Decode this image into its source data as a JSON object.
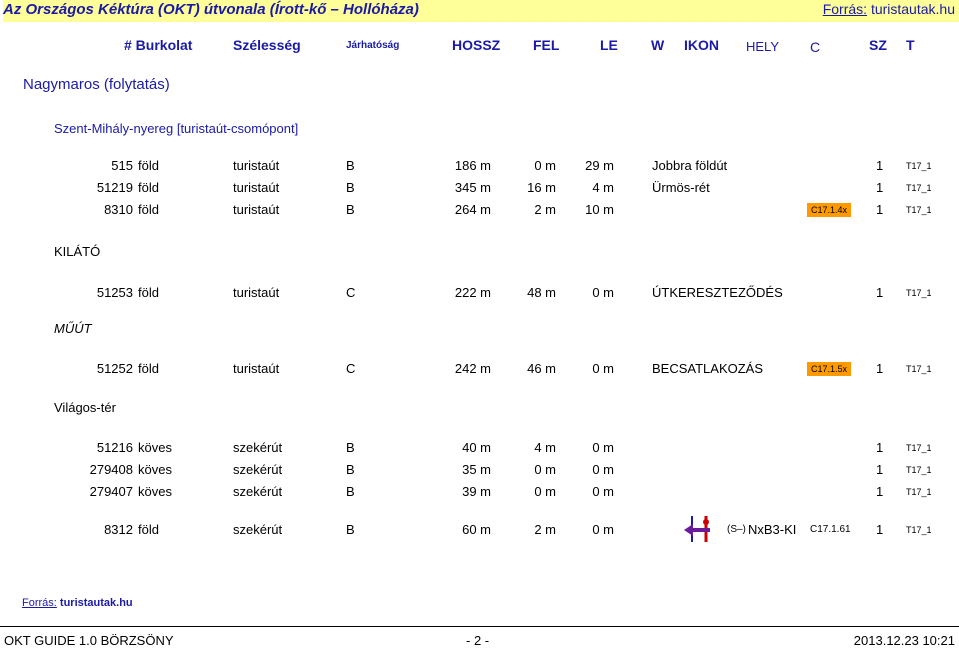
{
  "header": {
    "title": "Az Országos Kéktúra (OKT) útvonala (Írott-kő – Hollóháza)",
    "source_label": "Forrás:",
    "source_value": "turistautak.hu"
  },
  "columns": [
    "# Burkolat",
    "Szélesség",
    "Járhatóság",
    "HOSSZ",
    "FEL",
    "LE",
    "W",
    "IKON",
    "HELY",
    "C",
    "SZ",
    "T"
  ],
  "section_title": "Nagymaros (folytatás)",
  "subsection": "Szent-Mihály-nyereg [turistaút-csomópont]",
  "groups": [
    {
      "label": "",
      "rows": [
        {
          "num": "515",
          "surface": "föld",
          "width": "turistaút",
          "pass": "B",
          "len": "186 m",
          "up": "0 m",
          "down": "29 m",
          "w": "Jobbra földút",
          "tag": "",
          "c": "1",
          "t": "T17_1"
        },
        {
          "num": "51219",
          "surface": "föld",
          "width": "turistaút",
          "pass": "B",
          "len": "345 m",
          "up": "16 m",
          "down": "4 m",
          "w": "Ürmös-rét",
          "tag": "",
          "c": "1",
          "t": "T17_1"
        },
        {
          "num": "8310",
          "surface": "föld",
          "width": "turistaút",
          "pass": "B",
          "len": "264 m",
          "up": "2 m",
          "down": "10 m",
          "w": "",
          "tag": "C17.1.4x",
          "c": "1",
          "t": "T17_1"
        }
      ]
    },
    {
      "label": "KILÁTÓ",
      "rows": [
        {
          "num": "51253",
          "surface": "föld",
          "width": "turistaút",
          "pass": "C",
          "len": "222 m",
          "up": "48 m",
          "down": "0 m",
          "w": "ÚTKERESZTEZŐDÉS",
          "tag": "",
          "c": "1",
          "t": "T17_1"
        }
      ]
    },
    {
      "label": "MŰÚT",
      "rows": [
        {
          "num": "51252",
          "surface": "föld",
          "width": "turistaút",
          "pass": "C",
          "len": "242 m",
          "up": "46 m",
          "down": "0 m",
          "w": "BECSATLAKOZÁS",
          "tag": "C17.1.5x",
          "c": "1",
          "t": "T17_1"
        }
      ]
    },
    {
      "label": "Világos-tér",
      "rows": [
        {
          "num": "51216",
          "surface": "köves",
          "width": "szekérút",
          "pass": "B",
          "len": "40 m",
          "up": "4 m",
          "down": "0 m",
          "w": "",
          "tag": "",
          "c": "1",
          "t": "T17_1"
        },
        {
          "num": "279408",
          "surface": "köves",
          "width": "szekérút",
          "pass": "B",
          "len": "35 m",
          "up": "0 m",
          "down": "0 m",
          "w": "",
          "tag": "",
          "c": "1",
          "t": "T17_1"
        },
        {
          "num": "279407",
          "surface": "köves",
          "width": "szekérút",
          "pass": "B",
          "len": "39 m",
          "up": "0 m",
          "down": "0 m",
          "w": "",
          "tag": "",
          "c": "1",
          "t": "T17_1"
        }
      ]
    },
    {
      "label": "",
      "rows": [
        {
          "num": "8312",
          "surface": "föld",
          "width": "szekérút",
          "pass": "B",
          "len": "60 m",
          "up": "2 m",
          "down": "0 m",
          "w": "",
          "tag": "",
          "dir": "(S–)",
          "sign": "NxB3-KI",
          "c17": "C17.1.61",
          "c": "1",
          "t": "T17_1"
        }
      ]
    }
  ],
  "footer": {
    "source_label": "Forrás:",
    "source_value": "turistautak.hu",
    "left": "OKT GUIDE 1.0  BÖRZSÖNY",
    "center": "- 2 -",
    "right": "2013.12.23  10:21"
  },
  "colors": {
    "title_bg": "#ffff99",
    "blue_text": "#1a1aa6",
    "tag_bg": "#ff9900",
    "arrow": "#6a1b9a",
    "sign_red": "#cc0000"
  }
}
